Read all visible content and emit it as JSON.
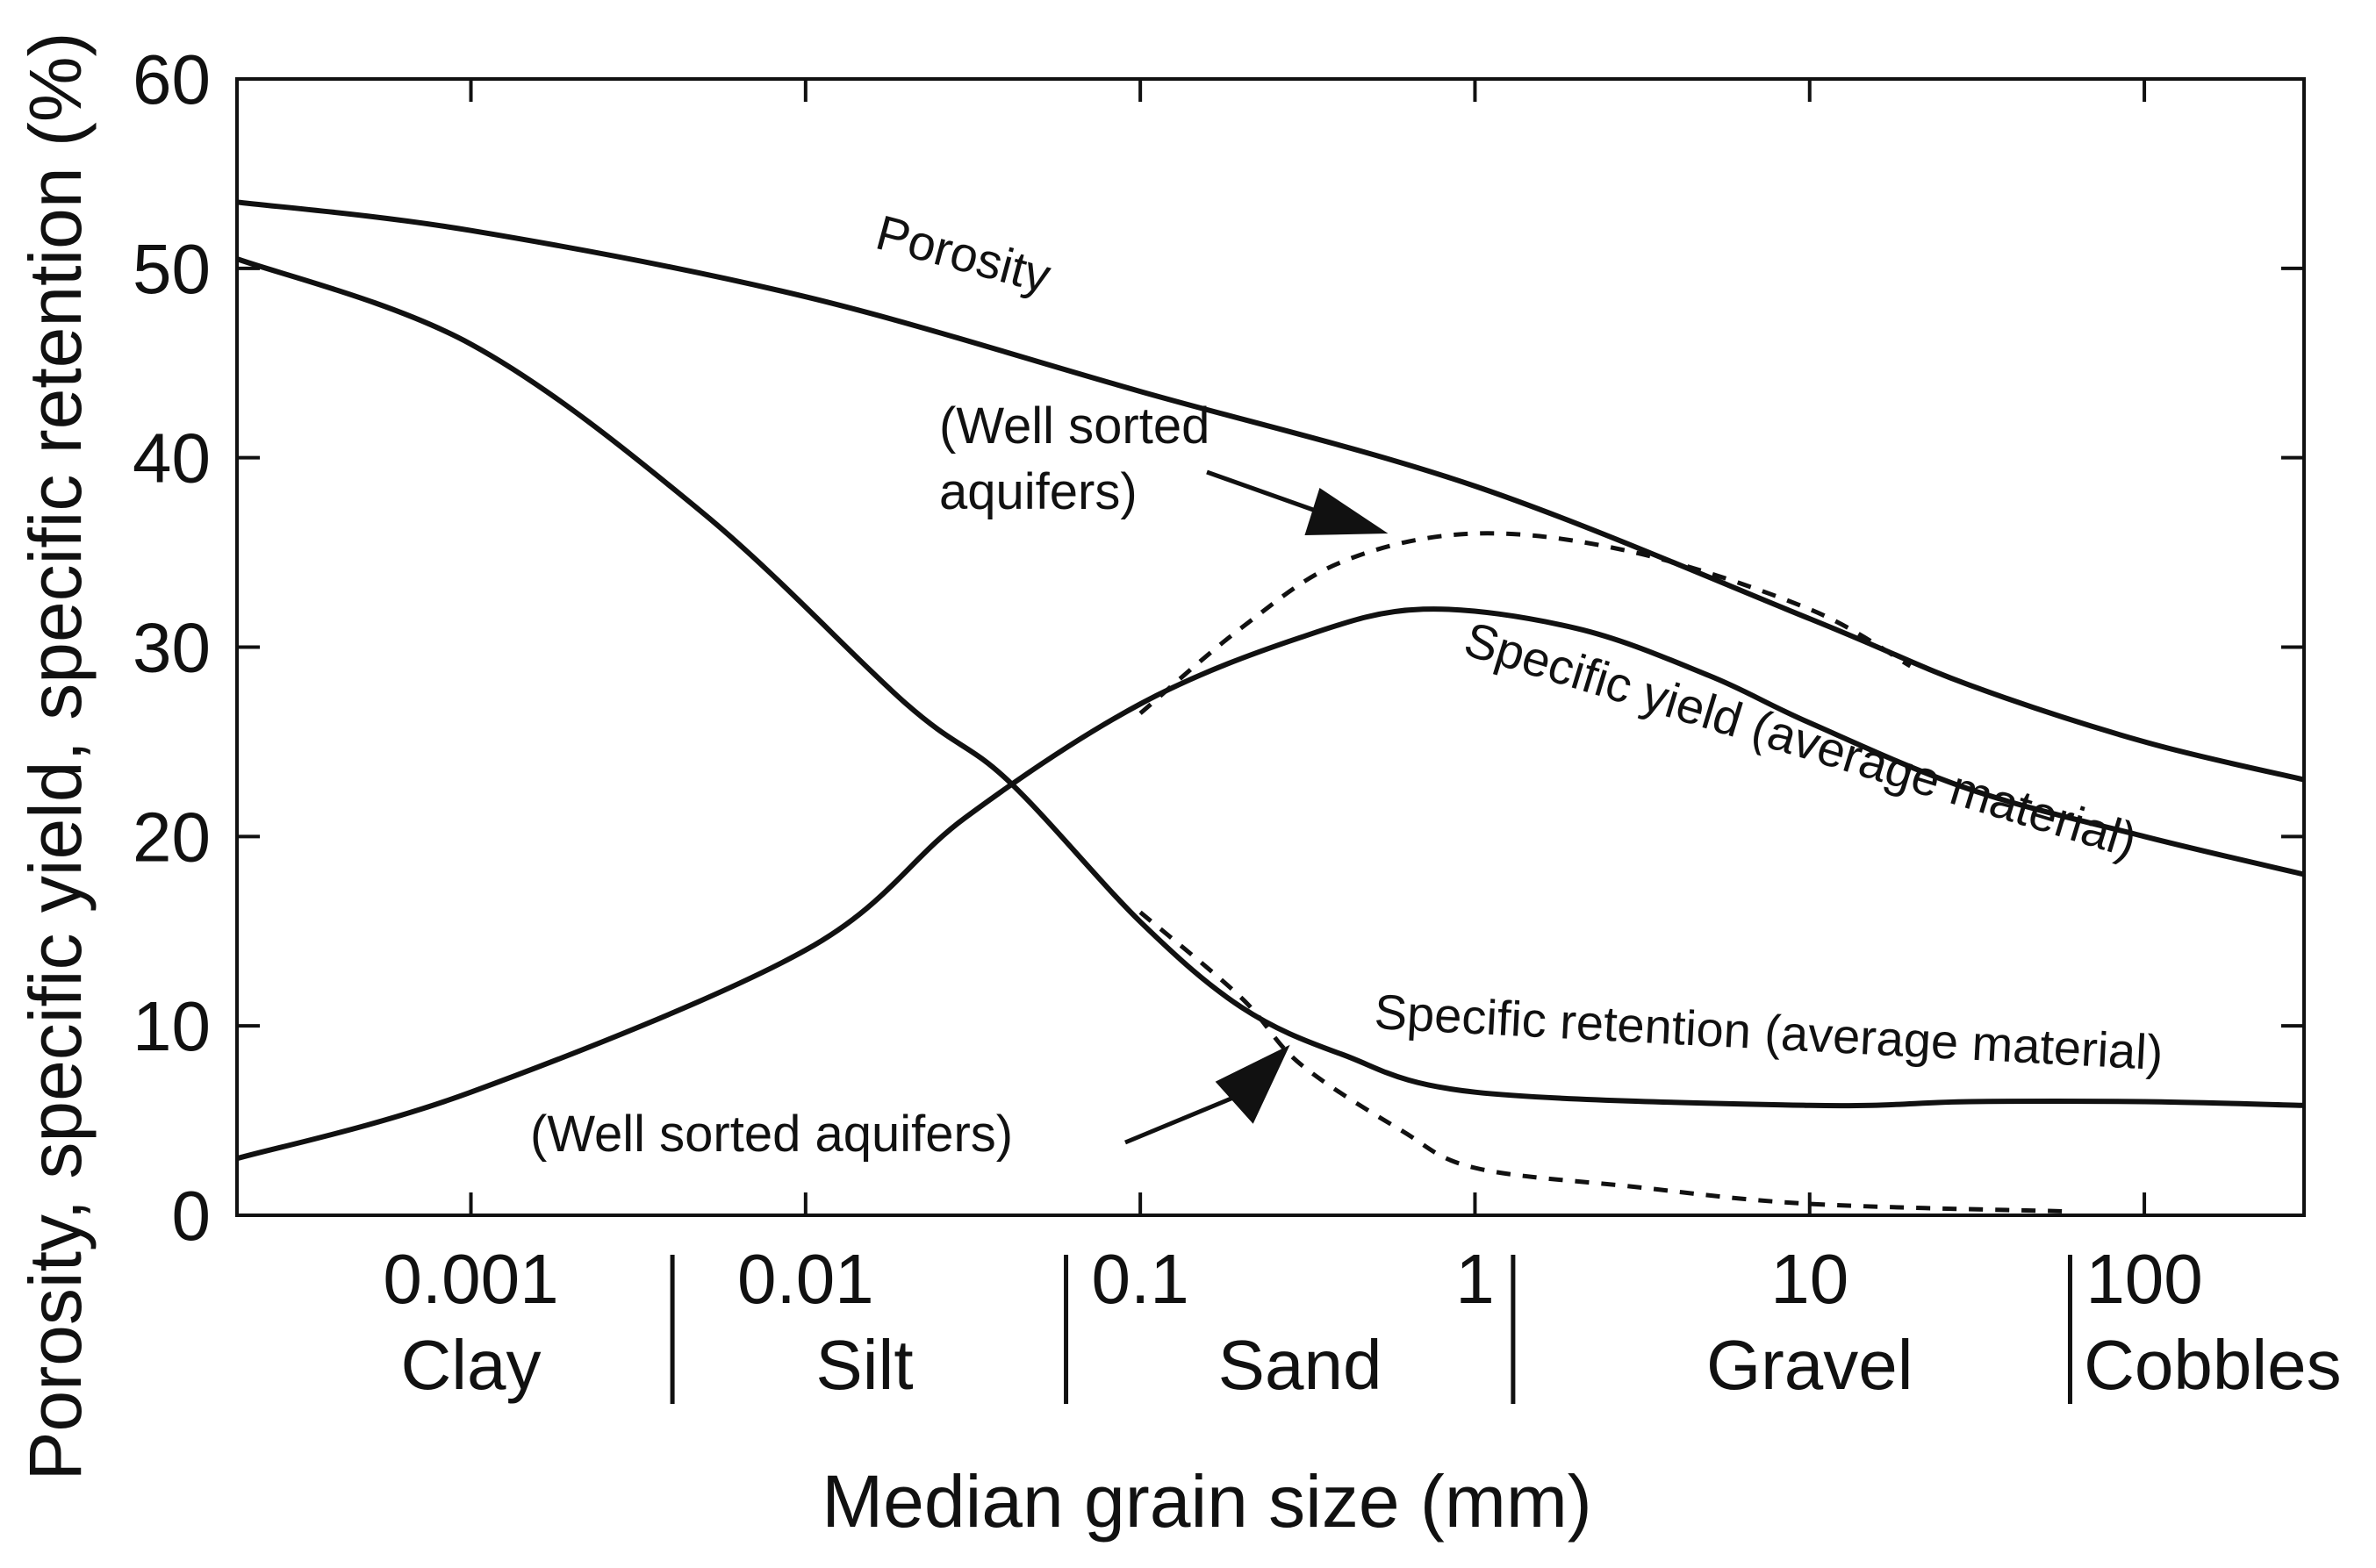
{
  "chart_data": {
    "type": "line",
    "title": "",
    "xlabel": "Median grain size (mm)",
    "ylabel": "Porosity, specific yield, specific retention (%)",
    "xscale": "log",
    "xlim": [
      0.0002,
      300
    ],
    "ylim": [
      0,
      60
    ],
    "y_ticks": [
      0,
      10,
      20,
      30,
      40,
      50,
      60
    ],
    "x_ticks": [
      {
        "value": 0.001,
        "label": "0.001"
      },
      {
        "value": 0.01,
        "label": "0.01"
      },
      {
        "value": 0.1,
        "label": "0.1"
      },
      {
        "value": 1,
        "label": "1"
      },
      {
        "value": 10,
        "label": "10"
      },
      {
        "value": 100,
        "label": "100"
      }
    ],
    "x_tick_marks": [
      0.001,
      0.01,
      0.1,
      1,
      10,
      100
    ],
    "size_classes": [
      {
        "name": "Clay",
        "center": 0.001
      },
      {
        "name": "Silt",
        "center": 0.015
      },
      {
        "name": "Sand",
        "center": 0.3
      },
      {
        "name": "Gravel",
        "center": 10
      },
      {
        "name": "Cobbles",
        "center": 160
      }
    ],
    "class_boundaries": [
      0.004,
      0.06,
      1.3,
      60
    ],
    "series": [
      {
        "name": "Porosity",
        "style": "solid",
        "x": [
          0.0002,
          0.001,
          0.01,
          0.1,
          1,
          10,
          30,
          100,
          300
        ],
        "y": [
          53.5,
          52,
          48.5,
          43.5,
          38.5,
          31.5,
          28,
          25,
          23
        ]
      },
      {
        "name": "Specific yield (average material)",
        "style": "solid",
        "x": [
          0.0002,
          0.001,
          0.01,
          0.03,
          0.1,
          0.3,
          0.7,
          2,
          5,
          10,
          30,
          100,
          300
        ],
        "y": [
          3,
          6.5,
          14,
          21,
          27,
          30.5,
          32,
          31,
          28.5,
          26,
          22.5,
          20,
          18
        ]
      },
      {
        "name": "Specific retention (average material)",
        "style": "solid",
        "x": [
          0.0002,
          0.001,
          0.005,
          0.02,
          0.04,
          0.1,
          0.2,
          0.4,
          1,
          10,
          30,
          100,
          300
        ],
        "y": [
          50.5,
          46,
          37,
          27,
          23,
          15.5,
          11,
          8.5,
          6.5,
          5.8,
          6,
          6,
          5.8
        ]
      },
      {
        "name": "Specific yield (well sorted aquifers)",
        "style": "dashed",
        "x": [
          0.1,
          0.2,
          0.4,
          1,
          3,
          10,
          20
        ],
        "y": [
          26.5,
          31,
          34.5,
          36,
          35,
          32,
          29
        ]
      },
      {
        "name": "Specific retention (well sorted aquifers)",
        "style": "dashed",
        "x": [
          0.1,
          0.2,
          0.3,
          0.6,
          1,
          3,
          10,
          60
        ],
        "y": [
          16,
          11.5,
          8,
          4.5,
          2.5,
          1.5,
          0.6,
          0.2
        ]
      }
    ],
    "annotations": [
      {
        "text": "Porosity",
        "target_series": "Porosity"
      },
      {
        "text": "Specific yield (average material)",
        "target_series": "Specific yield (average material)"
      },
      {
        "text": "Specific retention (average material)",
        "target_series": "Specific retention (average material)"
      },
      {
        "text_lines": [
          "(Well sorted",
          "aquifers)"
        ],
        "arrow_to": {
          "x": 0.55,
          "y": 36
        }
      },
      {
        "text": "(Well sorted aquifers)",
        "arrow_to": {
          "x": 0.28,
          "y": 9
        }
      }
    ],
    "grid": false,
    "legend": "none"
  }
}
